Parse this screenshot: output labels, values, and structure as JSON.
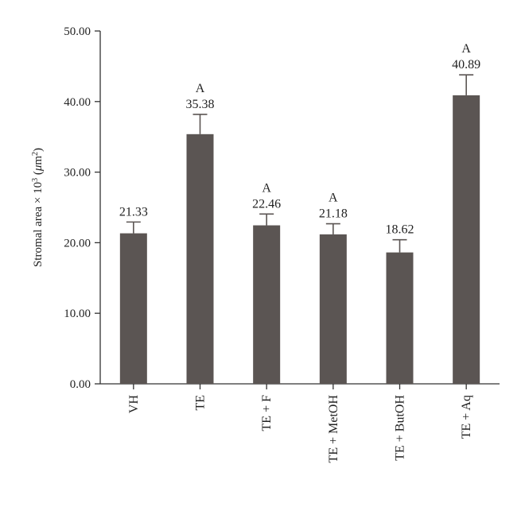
{
  "colors": {
    "bar": "#5b5553",
    "axis": "#333333",
    "text": "#222222",
    "background": "#ffffff"
  },
  "chart_data": {
    "type": "bar",
    "title": "",
    "xlabel": "",
    "ylabel": {
      "prefix": "Stromal area × 10",
      "exponent": "3",
      "unit_open": " (",
      "unit_mu": "μ",
      "unit_m": "m",
      "unit_exponent": "2",
      "unit_close": ")"
    },
    "ylim": [
      0,
      50
    ],
    "yticks": [
      "0.00",
      "10.00",
      "20.00",
      "30.00",
      "40.00",
      "50.00"
    ],
    "ytick_values": [
      0,
      10,
      20,
      30,
      40,
      50
    ],
    "grid": false,
    "legend": "none",
    "categories": [
      "VH",
      "TE",
      "TE + F",
      "TE + MetOH",
      "TE + ButOH",
      "TE + Aq"
    ],
    "values": [
      21.33,
      35.38,
      22.46,
      21.18,
      18.62,
      40.89
    ],
    "value_labels": [
      "21.33",
      "35.38",
      "22.46",
      "21.18",
      "18.62",
      "40.89"
    ],
    "error_upper": [
      1.6,
      2.8,
      1.6,
      1.5,
      1.8,
      2.9
    ],
    "significance": [
      "",
      "A",
      "A",
      "A",
      "",
      "A"
    ]
  }
}
